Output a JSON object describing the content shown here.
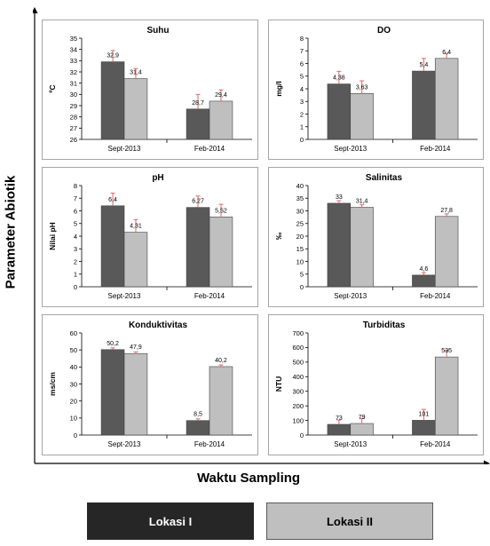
{
  "figure": {
    "ylabel": "Parameter Abiotik",
    "xlabel": "Waktu Sampling",
    "legend": [
      "Lokasi I",
      "Lokasi II"
    ],
    "colors": {
      "lokasi1": "#595959",
      "lokasi2": "#bfbfbf",
      "error": "#e06666",
      "legend1": "#262626"
    }
  },
  "chart_data": [
    {
      "type": "bar",
      "title": "Suhu",
      "ylabel": "ºC",
      "categories": [
        "Sept-2013",
        "Feb-2014"
      ],
      "series": [
        {
          "name": "Lokasi I",
          "values": [
            32.9,
            28.7
          ],
          "labels": [
            "32,9",
            "28,7"
          ],
          "errors": [
            1.0,
            1.3
          ]
        },
        {
          "name": "Lokasi II",
          "values": [
            31.4,
            29.4
          ],
          "labels": [
            "31,4",
            "29,4"
          ],
          "errors": [
            0.9,
            1.0
          ]
        }
      ],
      "ylim": [
        26,
        35
      ],
      "yticks": [
        26,
        27,
        28,
        29,
        30,
        31,
        32,
        33,
        34,
        35
      ],
      "grid": false
    },
    {
      "type": "bar",
      "title": "DO",
      "ylabel": "mg/l",
      "categories": [
        "Sept-2013",
        "Feb-2014"
      ],
      "series": [
        {
          "name": "Lokasi I",
          "values": [
            4.38,
            5.4
          ],
          "labels": [
            "4,38",
            "5,4"
          ],
          "errors": [
            1.0,
            1.0
          ]
        },
        {
          "name": "Lokasi II",
          "values": [
            3.63,
            6.4
          ],
          "labels": [
            "3,63",
            "6,4"
          ],
          "errors": [
            1.0,
            0.4
          ]
        }
      ],
      "ylim": [
        0,
        8
      ],
      "yticks": [
        0,
        1,
        2,
        3,
        4,
        5,
        6,
        7,
        8
      ],
      "grid": false
    },
    {
      "type": "bar",
      "title": "pH",
      "ylabel": "Nilai pH",
      "categories": [
        "Sept-2013",
        "Feb-2014"
      ],
      "series": [
        {
          "name": "Lokasi I",
          "values": [
            6.4,
            6.27
          ],
          "labels": [
            "6,4",
            "6,27"
          ],
          "errors": [
            1.0,
            0.9
          ]
        },
        {
          "name": "Lokasi II",
          "values": [
            4.31,
            5.52
          ],
          "labels": [
            "4,31",
            "5,52"
          ],
          "errors": [
            1.0,
            1.0
          ]
        }
      ],
      "ylim": [
        0,
        8
      ],
      "yticks": [
        0,
        1,
        2,
        3,
        4,
        5,
        6,
        7,
        8
      ],
      "grid": false
    },
    {
      "type": "bar",
      "title": "Salinitas",
      "ylabel": "‰",
      "categories": [
        "Sept-2013",
        "Feb-2014"
      ],
      "series": [
        {
          "name": "Lokasi I",
          "values": [
            33,
            4.6
          ],
          "labels": [
            "33",
            "4,6"
          ],
          "errors": [
            1.0,
            1.0
          ]
        },
        {
          "name": "Lokasi II",
          "values": [
            31.4,
            27.8
          ],
          "labels": [
            "31,4",
            "27,8"
          ],
          "errors": [
            1.0,
            1.0
          ]
        }
      ],
      "ylim": [
        0,
        40
      ],
      "yticks": [
        0,
        5,
        10,
        15,
        20,
        25,
        30,
        35,
        40
      ],
      "grid": false
    },
    {
      "type": "bar",
      "title": "Konduktivitas",
      "ylabel": "ms/cm",
      "categories": [
        "Sept-2013",
        "Feb-2014"
      ],
      "series": [
        {
          "name": "Lokasi I",
          "values": [
            50.2,
            8.5
          ],
          "labels": [
            "50,2",
            "8,5"
          ],
          "errors": [
            1.0,
            1.0
          ]
        },
        {
          "name": "Lokasi II",
          "values": [
            47.9,
            40.2
          ],
          "labels": [
            "47,9",
            "40,2"
          ],
          "errors": [
            1.0,
            1.0
          ]
        }
      ],
      "ylim": [
        0,
        60
      ],
      "yticks": [
        0,
        10,
        20,
        30,
        40,
        50,
        60
      ],
      "grid": false
    },
    {
      "type": "bar",
      "title": "Turbiditas",
      "ylabel": "NTU",
      "categories": [
        "Sept-2013",
        "Feb-2014"
      ],
      "series": [
        {
          "name": "Lokasi I",
          "values": [
            73,
            101
          ],
          "labels": [
            "73",
            "101"
          ],
          "errors": [
            30,
            75
          ]
        },
        {
          "name": "Lokasi II",
          "values": [
            79,
            535
          ],
          "labels": [
            "79",
            "535"
          ],
          "errors": [
            35,
            45
          ]
        }
      ],
      "ylim": [
        0,
        700
      ],
      "yticks": [
        0,
        100,
        200,
        300,
        400,
        500,
        600,
        700
      ],
      "grid": false
    }
  ]
}
